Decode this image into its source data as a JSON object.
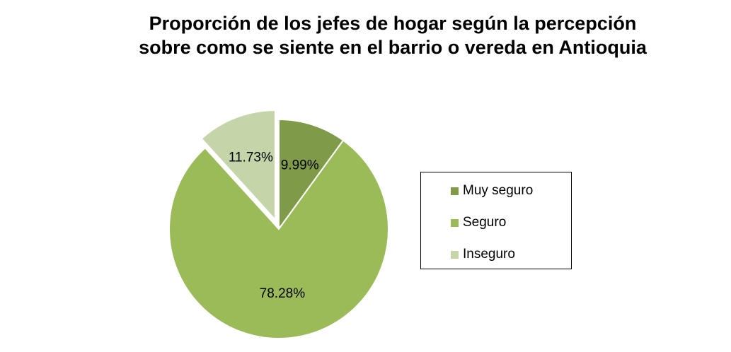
{
  "chart_data": {
    "type": "pie",
    "title": [
      "Proporción de los jefes de hogar según la percepción",
      "sobre como se siente en el barrio o vereda en Antioquia"
    ],
    "categories": [
      "Muy seguro",
      "Seguro",
      "Inseguro"
    ],
    "values": [
      9.99,
      78.28,
      11.73
    ],
    "labels": [
      "9.99%",
      "78.28%",
      "11.73%"
    ],
    "colors": [
      "#7f9a48",
      "#9bbb59",
      "#c4d6a9"
    ],
    "exploded": [
      "Inseguro"
    ],
    "legend_position": "right"
  }
}
